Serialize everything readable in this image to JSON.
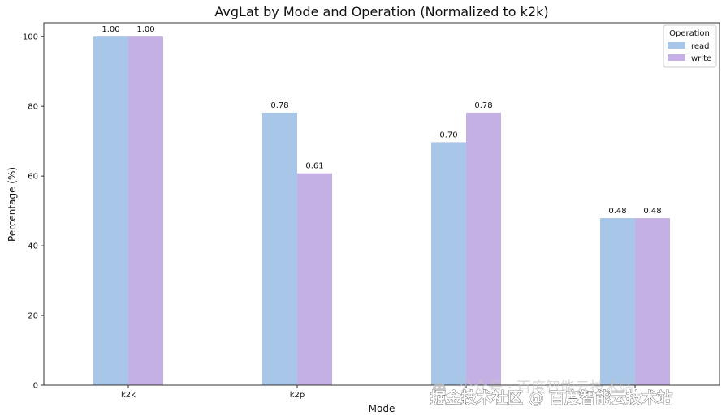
{
  "chart_data": {
    "type": "bar",
    "title": "AvgLat by Mode and Operation (Normalized to k2k)",
    "xlabel": "Mode",
    "ylabel": "Percentage (%)",
    "categories": [
      "k2k",
      "k2p",
      "",
      ""
    ],
    "ylim": [
      0,
      104
    ],
    "yticks": [
      0,
      20,
      40,
      60,
      80,
      100
    ],
    "grid": false,
    "legend": {
      "title": "Operation",
      "placement": "top-right"
    },
    "series": [
      {
        "name": "read",
        "color": "#a8c6e8",
        "values": [
          100,
          78.2,
          69.7,
          47.9
        ],
        "labels": [
          "1.00",
          "0.78",
          "0.70",
          "0.48"
        ]
      },
      {
        "name": "write",
        "color": "#c4b0e2",
        "values": [
          100,
          60.8,
          78.2,
          47.9
        ],
        "labels": [
          "1.00",
          "0.61",
          "0.78",
          "0.48"
        ]
      }
    ]
  },
  "watermark": {
    "text": "掘金技术社区 @ 百度智能云技术站",
    "faint_text": "公众号 · 百度智能云技术站",
    "icon": "wechat-icon"
  }
}
